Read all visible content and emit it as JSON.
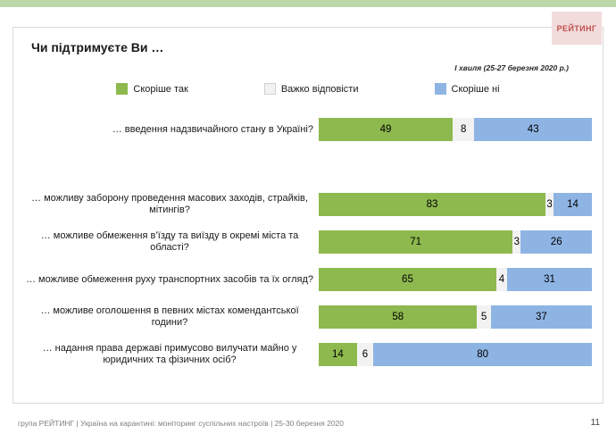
{
  "page": {
    "title": "Чи підтримуєте Ви …",
    "subtitle": "І хвиля (25-27 березня 2020 р.)",
    "logo": "РЕЙТИНГ",
    "footer": "група РЕЙТИНГ  |  Україна на карантині: моніторинг суспільних настроїв  |  25-30 березня 2020",
    "page_number": "11"
  },
  "colors": {
    "accent_strip": "#bcd8a9",
    "logo_bg": "#f2dcdb",
    "logo_text": "#c0504d",
    "yes_green": "#8db94e",
    "dk_gray": "#f2f2f2",
    "no_blue": "#8eb4e3"
  },
  "chart_data": {
    "type": "bar",
    "orientation": "horizontal",
    "stacked": true,
    "unit": "percent",
    "xlim": [
      0,
      100
    ],
    "grid": false,
    "legend_position": "top-center",
    "legend": [
      {
        "label": "Скоріше так",
        "color": "#8db94e"
      },
      {
        "label": "Важко відповісти",
        "color": "#f2f2f2"
      },
      {
        "label": "Скоріше ні",
        "color": "#8eb4e3"
      }
    ],
    "categories": [
      "… введення надзвичайного стану в Україні?",
      "… можливу заборону проведення масових заходів, страйків, мітингів?",
      "… можливе обмеження в’їзду та виїзду в окремі міста та області?",
      "… можливе обмеження руху транспортних засобів та їх огляд?",
      "… можливе оголошення в певних містах комендантської години?",
      "… надання права державі примусово вилучати майно у юридичних та фізичних осіб?"
    ],
    "series": [
      {
        "name": "Скоріше так",
        "values": [
          49,
          83,
          71,
          65,
          58,
          14
        ]
      },
      {
        "name": "Важко відповісти",
        "values": [
          8,
          3,
          3,
          4,
          5,
          6
        ]
      },
      {
        "name": "Скоріше ні",
        "values": [
          43,
          14,
          26,
          31,
          37,
          80
        ]
      }
    ]
  }
}
